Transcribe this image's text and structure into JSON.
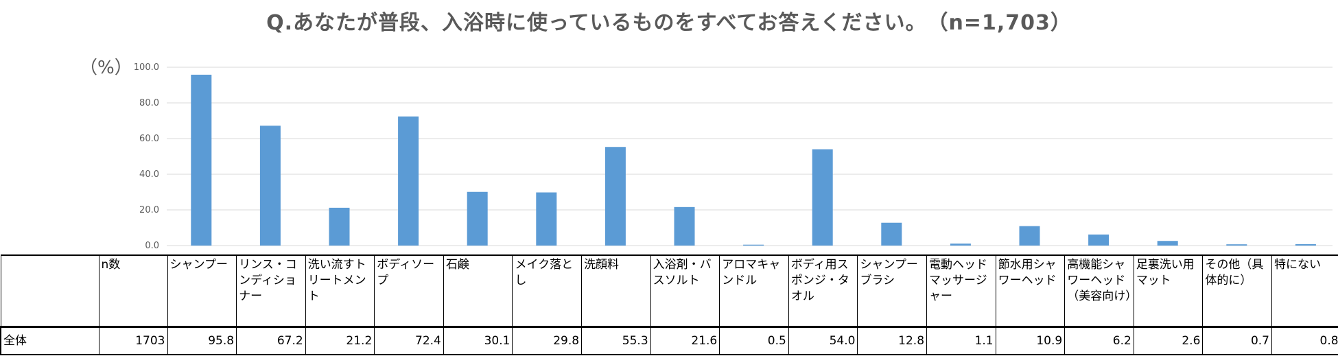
{
  "title": "Q.あなたが普段、入浴時に使っているものをすべてお答えください。　（n=1,703）",
  "unit_label": "（%）",
  "colors": {
    "bar": "#5b9bd5",
    "grid": "#d9d9d9",
    "text": "#595959"
  },
  "table": {
    "corner": "",
    "n_header": "n数",
    "row_label": "全体",
    "n_value": "1703",
    "value_strings": [
      "95.8",
      "67.2",
      "21.2",
      "72.4",
      "30.1",
      "29.8",
      "55.3",
      "21.6",
      "0.5",
      "54.0",
      "12.8",
      "1.1",
      "10.9",
      "6.2",
      "2.6",
      "0.7",
      "0.8"
    ]
  },
  "chart_data": {
    "type": "bar",
    "categories": [
      "シャンプー",
      "リンス・コンディショナー",
      "洗い流すトリートメント",
      "ボディソープ",
      "石鹸",
      "メイク落とし",
      "洗顔料",
      "入浴剤・バスソルト",
      "アロマキャンドル",
      "ボディ用スポンジ・タオル",
      "シャンプーブラシ",
      "電動ヘッドマッサージャー",
      "節水用シャワーヘッド",
      "高機能シャワーヘッド（美容向け）",
      "足裏洗い用マット",
      "その他（具体的に）",
      "特にない"
    ],
    "values": [
      95.8,
      67.2,
      21.2,
      72.4,
      30.1,
      29.8,
      55.3,
      21.6,
      0.5,
      54.0,
      12.8,
      1.1,
      10.9,
      6.2,
      2.6,
      0.7,
      0.8
    ],
    "ylim": [
      0,
      100
    ],
    "yticks": [
      "0.0",
      "20.0",
      "40.0",
      "60.0",
      "80.0",
      "100.0"
    ],
    "grid": true,
    "legend": "none"
  }
}
